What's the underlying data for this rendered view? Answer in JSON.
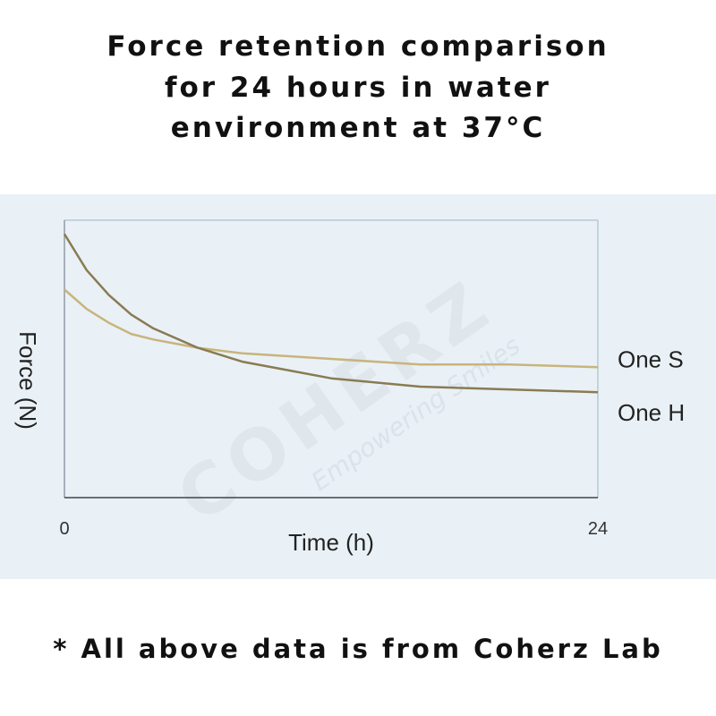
{
  "chart_data": {
    "type": "line",
    "title": [
      "Force retention comparison",
      "for 24 hours in water",
      "environment at 37°C"
    ],
    "x_label": "Time (h)",
    "y_label": "Force (N)",
    "x": [
      0,
      1,
      2,
      3,
      4,
      6,
      8,
      10,
      12,
      16,
      20,
      24
    ],
    "series": [
      {
        "name": "One S",
        "color": "#c9b47c",
        "values": [
          75,
          68,
          63,
          59,
          57,
          54,
          52,
          51,
          50,
          48,
          48,
          47
        ]
      },
      {
        "name": "One H",
        "color": "#8a7b52",
        "values": [
          95,
          82,
          73,
          66,
          61,
          54,
          49,
          46,
          43,
          40,
          39,
          38
        ]
      }
    ],
    "xlim": [
      0,
      24
    ],
    "xticks": [
      0,
      24
    ],
    "ylim": [
      0,
      100
    ],
    "grid": false,
    "watermark": [
      "COHERZ",
      "Empowering Smiles"
    ],
    "note": "* All above data is from Coherz Lab"
  }
}
